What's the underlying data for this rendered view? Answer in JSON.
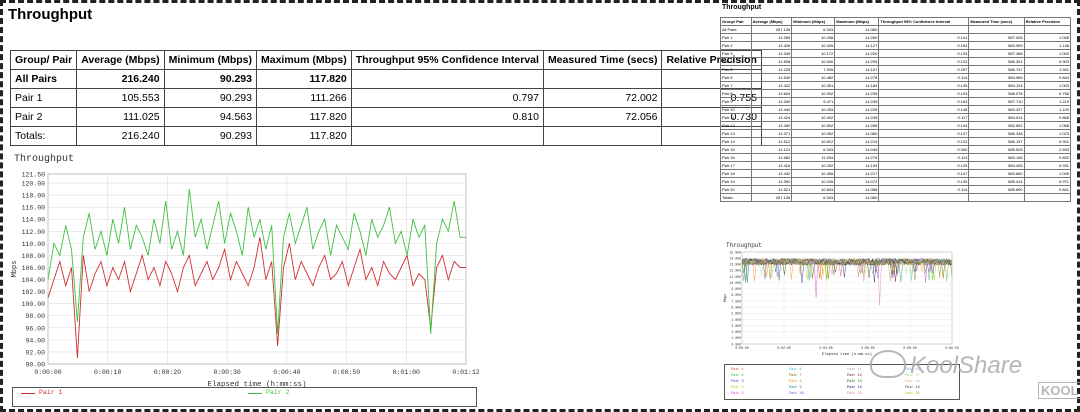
{
  "left": {
    "title": "Throughput",
    "table": {
      "headers": [
        "Group/ Pair",
        "Average (Mbps)",
        "Minimum (Mbps)",
        "Maximum (Mbps)",
        "Throughput 95% Confidence Interval",
        "Measured Time (secs)",
        "Relative Precision"
      ],
      "rows": [
        {
          "name": "All Pairs",
          "avg": "216.240",
          "min": "90.293",
          "max": "117.820",
          "ci": "",
          "time": "",
          "prec": "",
          "bold": true
        },
        {
          "name": "Pair 1",
          "avg": "105.553",
          "min": "90.293",
          "max": "111.266",
          "ci": "0.797",
          "time": "72.002",
          "prec": "0.755"
        },
        {
          "name": "Pair 2",
          "avg": "111.025",
          "min": "94.563",
          "max": "117.820",
          "ci": "0.810",
          "time": "72.056",
          "prec": "0.730"
        },
        {
          "name": "Totals:",
          "avg": "216.240",
          "min": "90.293",
          "max": "117.820",
          "ci": "",
          "time": "",
          "prec": ""
        }
      ]
    },
    "chart": {
      "title": "Throughput",
      "ylabel": "Mbps",
      "xlabel": "Elapsed time (h:mm:ss)",
      "legend": [
        "Pair 1",
        "Pair 2"
      ]
    }
  },
  "right": {
    "title": "Throughput",
    "table": {
      "headers": [
        "Group/ Pair",
        "Average (Mbps)",
        "Minimum (Mbps)",
        "Maximum (Mbps)",
        "Throughput 95% Confidence Interval",
        "Measured Time (secs)",
        "Relative Precision"
      ],
      "rows": [
        [
          "All Pairs",
          "267.135",
          "6.343",
          "14.360",
          "",
          "",
          ""
        ],
        [
          "Pair 1",
          "13.355",
          "10.258",
          "14.260",
          "0.141",
          "587.026",
          "1.055"
        ],
        [
          "Pair 2",
          "13.426",
          "10.426",
          "14.127",
          "0.154",
          "583.959",
          "1.148"
        ],
        [
          "Pair 3",
          "13.345",
          "10.172",
          "14.220",
          "0.133",
          "587.468",
          "1.000"
        ],
        [
          "Pair 4",
          "13.508",
          "10.540",
          "14.205",
          "0.122",
          "586.301",
          "0.903"
        ],
        [
          "Pair 5",
          "13.225",
          "7.505",
          "14.107",
          "0.257",
          "586.747",
          "1.941"
        ],
        [
          "Pair 6",
          "13.540",
          "10.482",
          "14.278",
          "0.114",
          "584.965",
          "0.844"
        ],
        [
          "Pair 7",
          "13.422",
          "10.351",
          "14.184",
          "0.135",
          "584.124",
          "1.003"
        ],
        [
          "Pair 8",
          "13.604",
          "10.932",
          "14.235",
          "0.103",
          "588.078",
          "0.758"
        ],
        [
          "Pair 9",
          "13.340",
          "9.471",
          "14.249",
          "0.163",
          "587.710",
          "1.219"
        ],
        [
          "Pair 10",
          "13.440",
          "10.433",
          "14.225",
          "0.148",
          "583.327",
          "1.100"
        ],
        [
          "Pair 11",
          "13.424",
          "10.402",
          "14.245",
          "0.117",
          "584.014",
          "0.868"
        ],
        [
          "Pair 12",
          "13.450",
          "10.592",
          "14.268",
          "0.144",
          "582.892",
          "1.068"
        ],
        [
          "Pair 13",
          "13.371",
          "10.062",
          "14.360",
          "0.137",
          "586.348",
          "1.023"
        ],
        [
          "Pair 14",
          "13.512",
          "10.812",
          "14.219",
          "0.122",
          "586.157",
          "0.901"
        ],
        [
          "Pair 15",
          "13.121",
          "6.343",
          "14.040",
          "0.340",
          "585.528",
          "2.593"
        ],
        [
          "Pair 16",
          "13.582",
          "11.034",
          "14.276",
          "0.113",
          "583.106",
          "0.832"
        ],
        [
          "Pair 17",
          "13.415",
          "10.252",
          "14.194",
          "0.125",
          "584.405",
          "0.931"
        ],
        [
          "Pair 18",
          "13.432",
          "10.406",
          "14.217",
          "0.147",
          "583.660",
          "1.095"
        ],
        [
          "Pair 19",
          "13.392",
          "10.245",
          "14.072",
          "0.130",
          "585.414",
          "0.971"
        ],
        [
          "Pair 20",
          "13.521",
          "10.843",
          "14.358",
          "0.114",
          "585.690",
          "0.841"
        ],
        [
          "Totals:",
          "267.135",
          "6.343",
          "14.360",
          "",
          "",
          ""
        ]
      ]
    },
    "chart": {
      "title": "Throughput",
      "ylabel": "Mbps",
      "xlabel": "Elapsed time (h:mm:ss)"
    },
    "legend": [
      "Pair 1",
      "Pair 2",
      "Pair 3",
      "Pair 4",
      "Pair 5",
      "Pair 6",
      "Pair 7",
      "Pair 8",
      "Pair 9",
      "Pair 10",
      "Pair 11",
      "Pair 12",
      "Pair 13",
      "Pair 14",
      "Pair 15",
      "Pair 16",
      "Pair 17",
      "Pair 18",
      "Pair 19",
      "Pair 20"
    ]
  },
  "watermark": {
    "text": "KoolShare",
    "badge": "KOOL"
  },
  "chart_data": [
    {
      "type": "line",
      "title": "Throughput",
      "xlabel": "Elapsed time (h:mm:ss)",
      "ylabel": "Mbps",
      "ylim": [
        90,
        121.5
      ],
      "yticks": [
        "90.00",
        "92.00",
        "94.00",
        "96.00",
        "98.00",
        "100.00",
        "102.00",
        "104.00",
        "106.00",
        "108.00",
        "110.00",
        "112.00",
        "114.00",
        "116.00",
        "118.00",
        "120.00",
        "121.50"
      ],
      "xticks": [
        "0:00:00",
        "0:00:10",
        "0:00:20",
        "0:00:30",
        "0:00:40",
        "0:00:50",
        "0:01:00",
        "0:01:12"
      ],
      "xlim": [
        0,
        72
      ],
      "series": [
        {
          "name": "Pair 1",
          "color": "#d03030",
          "values": [
            101,
            104,
            107,
            103,
            106,
            91,
            108,
            102,
            105,
            107,
            103,
            106,
            104,
            107,
            102,
            105,
            108,
            104,
            106,
            103,
            107,
            105,
            102,
            106,
            108,
            103,
            105,
            107,
            104,
            106,
            109,
            104,
            107,
            105,
            103,
            106,
            111,
            104,
            107,
            93,
            106,
            110,
            104,
            107,
            105,
            103,
            106,
            108,
            104,
            105,
            107,
            103,
            106,
            109,
            104,
            106,
            103,
            107,
            105,
            104,
            106,
            108,
            103,
            105,
            104,
            96,
            106,
            108,
            104,
            107,
            106,
            106
          ]
        },
        {
          "name": "Pair 2",
          "color": "#40c040",
          "values": [
            104,
            110,
            108,
            113,
            109,
            97,
            111,
            115,
            109,
            112,
            108,
            114,
            110,
            116,
            109,
            113,
            111,
            108,
            114,
            110,
            117,
            109,
            112,
            108,
            119,
            111,
            114,
            109,
            113,
            117,
            110,
            115,
            112,
            108,
            116,
            111,
            114,
            109,
            113,
            95,
            111,
            115,
            110,
            113,
            116,
            109,
            112,
            114,
            108,
            113,
            111,
            109,
            115,
            112,
            108,
            114,
            111,
            113,
            116,
            110,
            112,
            108,
            114,
            111,
            113,
            95,
            110,
            114,
            112,
            117,
            111,
            111
          ]
        }
      ]
    },
    {
      "type": "line",
      "title": "Throughput",
      "xlabel": "Elapsed time (h:mm:ss)",
      "ylabel": "Mbps",
      "ylim": [
        0,
        15
      ],
      "yticks": [
        "0.000",
        "1.000",
        "2.000",
        "3.000",
        "4.000",
        "5.000",
        "6.000",
        "7.000",
        "8.000",
        "9.000",
        "10.000",
        "11.000",
        "12.000",
        "13.000",
        "14.000",
        "15.000"
      ],
      "xticks": [
        "0:00:00",
        "0:02:00",
        "0:04:00",
        "0:06:00",
        "0:08:00",
        "0:09:50"
      ],
      "series_count": 20
    }
  ]
}
